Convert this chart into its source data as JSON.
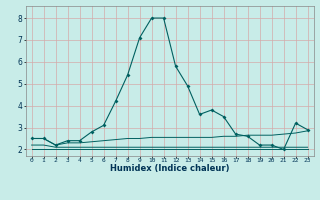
{
  "xlabel": "Humidex (Indice chaleur)",
  "background_color": "#c8ece8",
  "grid_color": "#d4aaaa",
  "line_color": "#006060",
  "x_values": [
    0,
    1,
    2,
    3,
    4,
    5,
    6,
    7,
    8,
    9,
    10,
    11,
    12,
    13,
    14,
    15,
    16,
    17,
    18,
    19,
    20,
    21,
    22,
    23
  ],
  "series1": [
    2.5,
    2.5,
    2.2,
    2.4,
    2.4,
    2.8,
    3.1,
    4.2,
    5.4,
    7.1,
    8.0,
    8.0,
    5.8,
    4.9,
    3.6,
    3.8,
    3.5,
    2.7,
    2.6,
    2.2,
    2.2,
    2.0,
    3.2,
    2.9
  ],
  "series2": [
    2.5,
    2.5,
    2.2,
    2.3,
    2.3,
    2.35,
    2.4,
    2.45,
    2.5,
    2.5,
    2.55,
    2.55,
    2.55,
    2.55,
    2.55,
    2.55,
    2.6,
    2.6,
    2.65,
    2.65,
    2.65,
    2.7,
    2.75,
    2.85
  ],
  "series3": [
    2.2,
    2.2,
    2.1,
    2.1,
    2.1,
    2.1,
    2.1,
    2.1,
    2.1,
    2.1,
    2.1,
    2.1,
    2.1,
    2.1,
    2.1,
    2.1,
    2.1,
    2.1,
    2.1,
    2.1,
    2.1,
    2.1,
    2.1,
    2.1
  ],
  "series4": [
    2.0,
    2.0,
    2.0,
    2.0,
    2.0,
    2.0,
    2.0,
    2.0,
    2.0,
    2.0,
    2.0,
    2.0,
    2.0,
    2.0,
    2.0,
    2.0,
    2.0,
    2.0,
    2.0,
    2.0,
    2.0,
    2.0,
    2.0,
    2.0
  ],
  "ylim": [
    1.7,
    8.55
  ],
  "xlim": [
    -0.5,
    23.5
  ],
  "yticks": [
    2,
    3,
    4,
    5,
    6,
    7,
    8
  ],
  "xticks": [
    0,
    1,
    2,
    3,
    4,
    5,
    6,
    7,
    8,
    9,
    10,
    11,
    12,
    13,
    14,
    15,
    16,
    17,
    18,
    19,
    20,
    21,
    22,
    23
  ]
}
